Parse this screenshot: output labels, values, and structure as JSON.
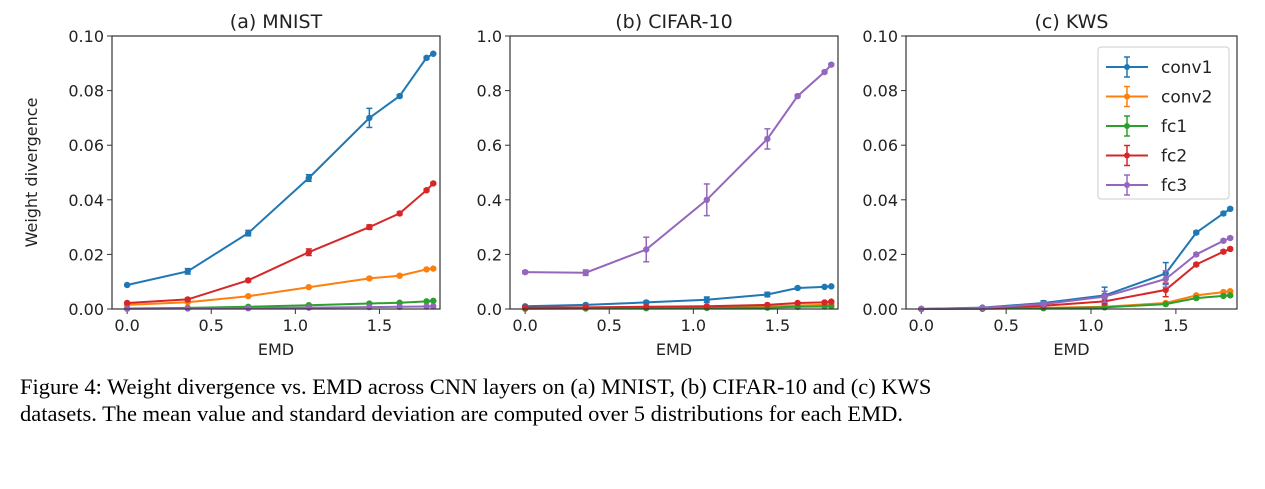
{
  "chart_data": [
    {
      "type": "line",
      "title": "(a) MNIST",
      "xlabel": "EMD",
      "ylabel": "Weight divergence",
      "xlim": [
        -0.09,
        1.86
      ],
      "ylim": [
        0,
        0.1
      ],
      "xticks": [
        "0.0",
        "0.5",
        "1.0",
        "1.5"
      ],
      "yticks": [
        "0.00",
        "0.02",
        "0.04",
        "0.06",
        "0.08",
        "0.10"
      ],
      "x": [
        0,
        0.36,
        0.72,
        1.08,
        1.44,
        1.62,
        1.78,
        1.82
      ],
      "series": [
        {
          "name": "conv1",
          "color": "#1f77b4",
          "values": [
            0.0088,
            0.0138,
            0.0278,
            0.048,
            0.07,
            0.078,
            0.092,
            0.0935
          ],
          "std": [
            0.0003,
            0.001,
            0.001,
            0.0012,
            0.0035,
            0.0005,
            0.0005,
            0.0003
          ]
        },
        {
          "name": "conv2",
          "color": "#ff7f0e",
          "values": [
            0.0015,
            0.0025,
            0.0047,
            0.008,
            0.0112,
            0.0122,
            0.0145,
            0.0148
          ],
          "std": [
            0.0002,
            0.0002,
            0.0003,
            0.0003,
            0.0004,
            0.0003,
            0.0003,
            0.0003
          ]
        },
        {
          "name": "fc1",
          "color": "#2ca02c",
          "values": [
            0.0002,
            0.0004,
            0.0008,
            0.0014,
            0.002,
            0.0023,
            0.0028,
            0.003
          ],
          "std": [
            0.0001,
            0.0001,
            0.0001,
            0.0001,
            0.0001,
            0.0001,
            0.0001,
            0.0001
          ]
        },
        {
          "name": "fc2",
          "color": "#d62728",
          "values": [
            0.0022,
            0.0035,
            0.0105,
            0.0208,
            0.03,
            0.035,
            0.0435,
            0.046
          ],
          "std": [
            0.0002,
            0.0004,
            0.0005,
            0.0012,
            0.0008,
            0.0005,
            0.0005,
            0.0003
          ]
        },
        {
          "name": "fc3",
          "color": "#9467bd",
          "values": [
            0.0001,
            0.0002,
            0.0003,
            0.0005,
            0.0007,
            0.0008,
            0.0009,
            0.001
          ],
          "std": [
            0,
            0,
            0,
            0,
            0,
            0,
            0,
            0
          ]
        }
      ]
    },
    {
      "type": "line",
      "title": "(b) CIFAR-10",
      "xlabel": "EMD",
      "ylabel": "",
      "xlim": [
        -0.09,
        1.86
      ],
      "ylim": [
        0,
        1.0
      ],
      "xticks": [
        "0.0",
        "0.5",
        "1.0",
        "1.5"
      ],
      "yticks": [
        "0.0",
        "0.2",
        "0.4",
        "0.6",
        "0.8",
        "1.0"
      ],
      "x": [
        0,
        0.36,
        0.72,
        1.08,
        1.44,
        1.62,
        1.78,
        1.82
      ],
      "series": [
        {
          "name": "conv1",
          "color": "#1f77b4",
          "values": [
            0.01,
            0.015,
            0.024,
            0.034,
            0.053,
            0.077,
            0.081,
            0.083
          ],
          "std": [
            0.002,
            0.003,
            0.005,
            0.01,
            0.008,
            0.004,
            0.003,
            0.002
          ]
        },
        {
          "name": "conv2",
          "color": "#ff7f0e",
          "values": [
            0.003,
            0.004,
            0.005,
            0.007,
            0.009,
            0.013,
            0.015,
            0.017
          ],
          "std": [
            0.001,
            0.001,
            0.001,
            0.001,
            0.001,
            0.001,
            0.001,
            0.001
          ]
        },
        {
          "name": "fc1",
          "color": "#2ca02c",
          "values": [
            0.001,
            0.002,
            0.003,
            0.004,
            0.005,
            0.008,
            0.009,
            0.01
          ],
          "std": [
            0,
            0,
            0,
            0,
            0,
            0,
            0,
            0
          ]
        },
        {
          "name": "fc2",
          "color": "#d62728",
          "values": [
            0.005,
            0.006,
            0.008,
            0.01,
            0.015,
            0.022,
            0.024,
            0.027
          ],
          "std": [
            0.001,
            0.001,
            0.001,
            0.002,
            0.002,
            0.002,
            0.002,
            0.002
          ]
        },
        {
          "name": "fc3",
          "color": "#9467bd",
          "values": [
            0.135,
            0.133,
            0.218,
            0.4,
            0.623,
            0.78,
            0.868,
            0.895
          ],
          "std": [
            0.005,
            0.01,
            0.045,
            0.058,
            0.037,
            0.005,
            0.005,
            0.004
          ]
        }
      ]
    },
    {
      "type": "line",
      "title": "(c) KWS",
      "xlabel": "EMD",
      "ylabel": "",
      "xlim": [
        -0.09,
        1.86
      ],
      "ylim": [
        0,
        0.1
      ],
      "xticks": [
        "0.0",
        "0.5",
        "1.0",
        "1.5"
      ],
      "yticks": [
        "0.00",
        "0.02",
        "0.04",
        "0.06",
        "0.08",
        "0.10"
      ],
      "legend": "top-right",
      "x": [
        0,
        0.36,
        0.72,
        1.08,
        1.44,
        1.62,
        1.78,
        1.82
      ],
      "series": [
        {
          "name": "conv1",
          "color": "#1f77b4",
          "values": [
            0,
            0.0005,
            0.0022,
            0.005,
            0.013,
            0.028,
            0.035,
            0.0367
          ],
          "std": [
            0,
            0.0002,
            0.0008,
            0.003,
            0.004,
            0.0005,
            0.0005,
            0.0004
          ]
        },
        {
          "name": "conv2",
          "color": "#ff7f0e",
          "values": [
            0,
            0.0001,
            0.0004,
            0.0008,
            0.0022,
            0.005,
            0.0062,
            0.0065
          ],
          "std": [
            0,
            0,
            0.0001,
            0.0002,
            0.0003,
            0.0003,
            0.0003,
            0.0003
          ]
        },
        {
          "name": "fc1",
          "color": "#2ca02c",
          "values": [
            0,
            0.0001,
            0.0003,
            0.0006,
            0.0018,
            0.004,
            0.0048,
            0.005
          ],
          "std": [
            0,
            0,
            0.0001,
            0.0001,
            0.0003,
            0.0003,
            0.0003,
            0.0003
          ]
        },
        {
          "name": "fc2",
          "color": "#d62728",
          "values": [
            0,
            0.0003,
            0.0012,
            0.0028,
            0.007,
            0.0163,
            0.021,
            0.022
          ],
          "std": [
            0,
            0.0001,
            0.0005,
            0.0012,
            0.0025,
            0.0005,
            0.0005,
            0.0004
          ]
        },
        {
          "name": "fc3",
          "color": "#9467bd",
          "values": [
            0,
            0.0004,
            0.0018,
            0.0045,
            0.011,
            0.02,
            0.025,
            0.026
          ],
          "std": [
            0,
            0.0002,
            0.0006,
            0.002,
            0.003,
            0.0005,
            0.0005,
            0.0004
          ]
        }
      ]
    }
  ],
  "caption": {
    "line1": "Figure 4: Weight divergence vs. EMD across CNN layers on (a) MNIST, (b) CIFAR-10 and (c) KWS",
    "line2": "datasets. The mean value and standard deviation are computed over 5 distributions for each EMD."
  }
}
